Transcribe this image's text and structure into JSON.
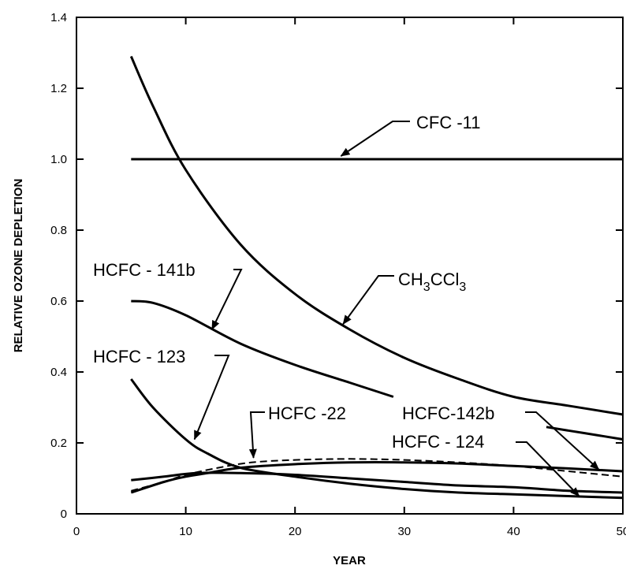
{
  "chart_data": {
    "type": "line",
    "title": "",
    "xlabel": "YEAR",
    "ylabel": "RELATIVE OZONE DEPLETION",
    "xlim": [
      0,
      50
    ],
    "ylim": [
      0,
      1.4
    ],
    "xticks": [
      0,
      10,
      20,
      30,
      40,
      50
    ],
    "yticks": [
      0,
      0.2,
      0.4,
      0.6,
      0.8,
      1.0,
      1.2,
      1.4
    ],
    "xtick_labels": [
      "0",
      "10",
      "20",
      "30",
      "40",
      "50"
    ],
    "ytick_labels": [
      "0",
      "0.2",
      "0.4",
      "0.6",
      "0.8",
      "1.0",
      "1.2",
      "1.4"
    ],
    "grid": false,
    "legend": "none",
    "series": [
      {
        "key": "cfc11",
        "name": "CFC -11",
        "style": "solid",
        "x": [
          5,
          50
        ],
        "y": [
          1.0,
          1.0
        ]
      },
      {
        "key": "ch3ccl3",
        "name": "CH3CCl3",
        "style": "solid",
        "x": [
          5,
          7,
          10,
          15,
          20,
          25,
          30,
          35,
          40,
          45,
          50
        ],
        "y": [
          1.29,
          1.15,
          0.97,
          0.76,
          0.62,
          0.52,
          0.44,
          0.38,
          0.33,
          0.305,
          0.28
        ]
      },
      {
        "key": "hcfc141b",
        "name": "HCFC - 141b",
        "style": "solid",
        "x": [
          5,
          7,
          10,
          15,
          20,
          25,
          29
        ],
        "y": [
          0.6,
          0.595,
          0.56,
          0.48,
          0.42,
          0.37,
          0.33
        ]
      },
      {
        "key": "hcfc123",
        "name": "HCFC - 123",
        "style": "solid",
        "x": [
          5,
          7,
          10,
          12,
          15,
          20,
          25,
          30,
          35,
          40,
          45,
          50
        ],
        "y": [
          0.38,
          0.3,
          0.21,
          0.17,
          0.13,
          0.105,
          0.085,
          0.07,
          0.06,
          0.055,
          0.05,
          0.045
        ]
      },
      {
        "key": "hcfc22",
        "name": "HCFC -22",
        "style": "dashed",
        "x": [
          5,
          8,
          10,
          13,
          16,
          20,
          25,
          30,
          35,
          40,
          45,
          50
        ],
        "y": [
          0.065,
          0.09,
          0.11,
          0.13,
          0.145,
          0.152,
          0.155,
          0.152,
          0.145,
          0.135,
          0.12,
          0.105
        ]
      },
      {
        "key": "hcfc142b",
        "name": "HCFC-142b",
        "style": "solid",
        "x": [
          43,
          45,
          48,
          50
        ],
        "y": [
          0.245,
          0.235,
          0.22,
          0.21
        ]
      },
      {
        "key": "hcfc124",
        "name": "HCFC - 124",
        "style": "solid",
        "x": [
          5,
          8,
          10,
          12,
          15,
          20,
          25,
          30,
          35,
          40,
          45,
          50
        ],
        "y": [
          0.06,
          0.09,
          0.105,
          0.115,
          0.13,
          0.14,
          0.145,
          0.145,
          0.142,
          0.135,
          0.128,
          0.12
        ]
      },
      {
        "key": "lowcurve",
        "name": "",
        "style": "solid",
        "x": [
          5,
          8,
          11,
          15,
          20,
          25,
          30,
          35,
          40,
          45,
          50
        ],
        "y": [
          0.095,
          0.105,
          0.115,
          0.115,
          0.11,
          0.1,
          0.09,
          0.08,
          0.075,
          0.065,
          0.06
        ]
      }
    ],
    "annotations": [
      {
        "key": "cfc11",
        "main": "CFC -11",
        "sub": "",
        "tail": ""
      },
      {
        "key": "ch3ccl3",
        "main": "CH",
        "sub": "3",
        "main2": "CCl",
        "sub2": "3"
      },
      {
        "key": "hcfc141b",
        "main": "HCFC - 141b"
      },
      {
        "key": "hcfc123",
        "main": "HCFC - 123"
      },
      {
        "key": "hcfc22",
        "main": "HCFC -22"
      },
      {
        "key": "hcfc142b",
        "main": "HCFC-142b"
      },
      {
        "key": "hcfc124",
        "main": "HCFC - 124"
      }
    ]
  }
}
